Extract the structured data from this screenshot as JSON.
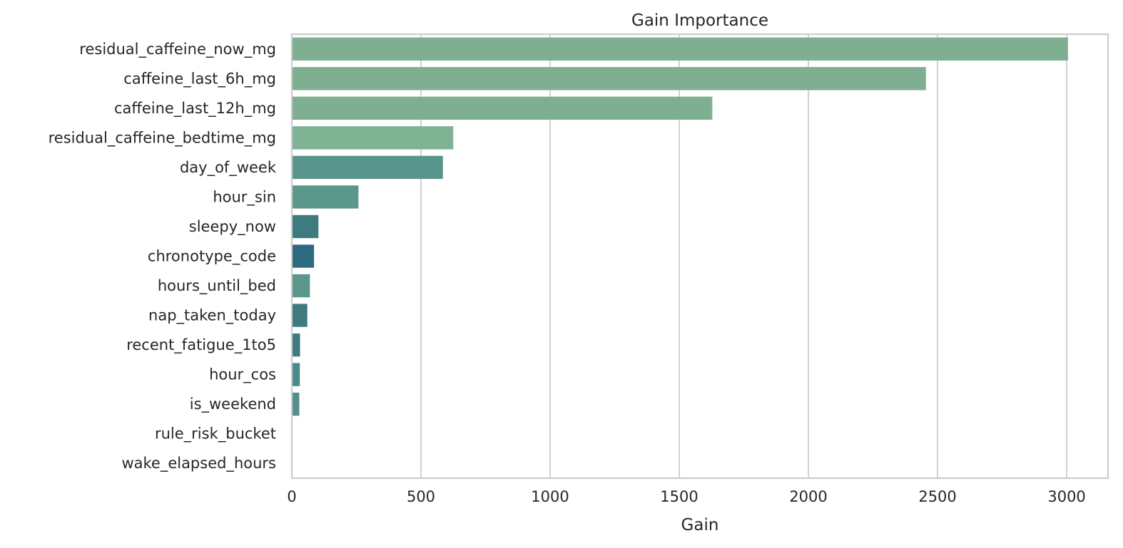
{
  "chart_data": {
    "type": "bar",
    "orientation": "horizontal",
    "title": "Gain Importance",
    "xlabel": "Gain",
    "ylabel": "",
    "xlim": [
      0,
      3160
    ],
    "xticks": [
      0,
      500,
      1000,
      1500,
      2000,
      2500,
      3000
    ],
    "grid": true,
    "categories": [
      "residual_caffeine_now_mg",
      "caffeine_last_6h_mg",
      "caffeine_last_12h_mg",
      "residual_caffeine_bedtime_mg",
      "day_of_week",
      "hour_sin",
      "sleepy_now",
      "chronotype_code",
      "hours_until_bed",
      "nap_taken_today",
      "recent_fatigue_1to5",
      "hour_cos",
      "is_weekend",
      "rule_risk_bucket",
      "wake_elapsed_hours"
    ],
    "values": [
      3005,
      2455,
      1628,
      625,
      585,
      258,
      103,
      86,
      70,
      60,
      32,
      31,
      29,
      0,
      0
    ],
    "colors": [
      "#7faf91",
      "#7faf91",
      "#7faf91",
      "#7fb293",
      "#59958b",
      "#5b978b",
      "#3e7b80",
      "#2d6a80",
      "#5b978b",
      "#3e7b80",
      "#3e7b80",
      "#4b898a",
      "#53908b",
      "#7faf91",
      "#7faf91"
    ]
  }
}
